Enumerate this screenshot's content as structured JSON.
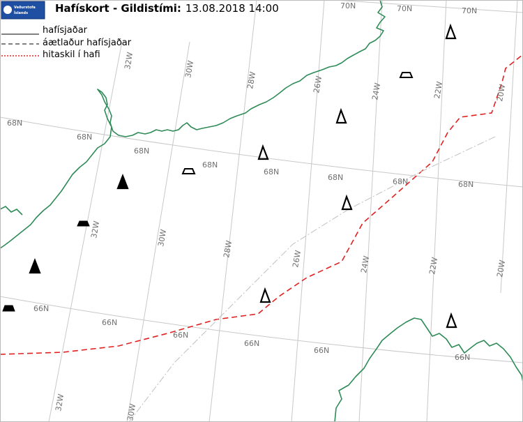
{
  "title": {
    "bold": "Hafískort - Gildistími:",
    "datetime": "13.08.2018 14:00"
  },
  "logo": {
    "line1": "Veðurstofa",
    "line2": "Íslands",
    "colors": {
      "background": "#1f4fa3",
      "accent": "#ffffff"
    }
  },
  "legend": {
    "ice_edge": "hafísjaðar",
    "estimated_ice_edge": "áætlaður hafísjaðar",
    "temperature_front": "hitaskil í hafi"
  },
  "colors": {
    "coast": "#2e8b57",
    "graticule": "#c8c8c8",
    "grid_label": "#707070",
    "front": "#e02020",
    "track": "#c0c0c0"
  },
  "grid_labels": {
    "lat_70N": "70N",
    "lat_68N": "68N",
    "lat_66N": "66N",
    "lon_32W": "32W",
    "lon_30W": "30W",
    "lon_28W": "28W",
    "lon_26W": "26W",
    "lon_24W": "24W",
    "lon_22W": "22W",
    "lon_20W": "20W"
  },
  "symbols": [
    {
      "kind": "iceberg",
      "filled": false
    },
    {
      "kind": "iceberg",
      "filled": false
    },
    {
      "kind": "iceberg",
      "filled": false
    },
    {
      "kind": "iceberg",
      "filled": false
    },
    {
      "kind": "iceberg",
      "filled": false
    },
    {
      "kind": "iceberg",
      "filled": false
    },
    {
      "kind": "iceberg",
      "filled": true
    },
    {
      "kind": "iceberg",
      "filled": true
    },
    {
      "kind": "growler",
      "filled": false
    },
    {
      "kind": "growler",
      "filled": false
    },
    {
      "kind": "growler",
      "filled": true
    },
    {
      "kind": "growler",
      "filled": true
    }
  ]
}
